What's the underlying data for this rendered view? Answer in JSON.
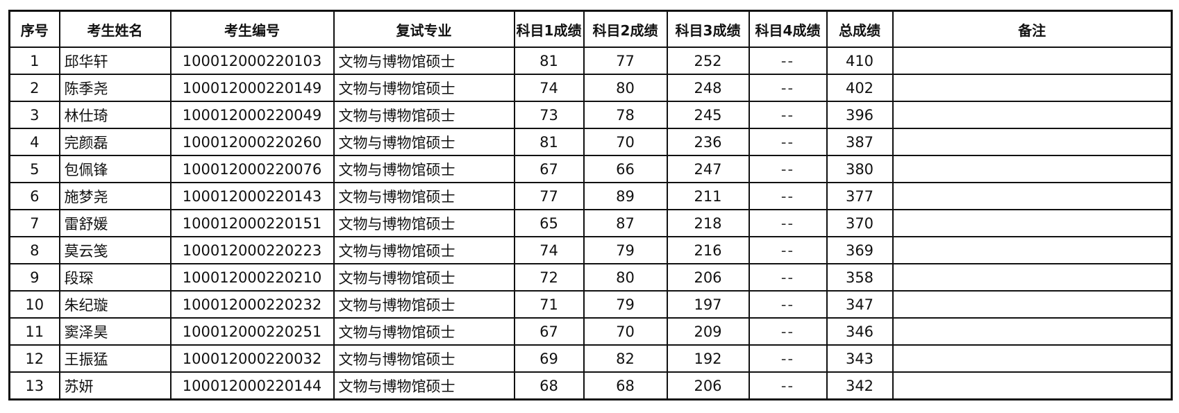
{
  "headers": [
    "序号",
    "考生姓名",
    "考生编号",
    "复试专业",
    "科目1成绩",
    "科目2成绩",
    "科目3成绩",
    "科目4成绩",
    "总成绩",
    "备注"
  ],
  "rows": [
    [
      "1",
      "邱华轩",
      "100012000220103",
      "文物与博物馆硕士",
      "81",
      "77",
      "252",
      "--",
      "410",
      ""
    ],
    [
      "2",
      "陈季尧",
      "100012000220149",
      "文物与博物馆硕士",
      "74",
      "80",
      "248",
      "--",
      "402",
      ""
    ],
    [
      "3",
      "林仕琦",
      "100012000220049",
      "文物与博物馆硕士",
      "73",
      "78",
      "245",
      "--",
      "396",
      ""
    ],
    [
      "4",
      "完颜磊",
      "100012000220260",
      "文物与博物馆硕士",
      "81",
      "70",
      "236",
      "--",
      "387",
      ""
    ],
    [
      "5",
      "包佩锋",
      "100012000220076",
      "文物与博物馆硕士",
      "67",
      "66",
      "247",
      "--",
      "380",
      ""
    ],
    [
      "6",
      "施梦尧",
      "100012000220143",
      "文物与博物馆硕士",
      "77",
      "89",
      "211",
      "--",
      "377",
      ""
    ],
    [
      "7",
      "雷舒媛",
      "100012000220151",
      "文物与博物馆硕士",
      "65",
      "87",
      "218",
      "--",
      "370",
      ""
    ],
    [
      "8",
      "莫云笺",
      "100012000220223",
      "文物与博物馆硕士",
      "74",
      "79",
      "216",
      "--",
      "369",
      ""
    ],
    [
      "9",
      "段琛",
      "100012000220210",
      "文物与博物馆硕士",
      "72",
      "80",
      "206",
      "--",
      "358",
      ""
    ],
    [
      "10",
      "朱纪璇",
      "100012000220232",
      "文物与博物馆硕士",
      "71",
      "79",
      "197",
      "--",
      "347",
      ""
    ],
    [
      "11",
      "窦泽昊",
      "100012000220251",
      "文物与博物馆硕士",
      "67",
      "70",
      "209",
      "--",
      "346",
      ""
    ],
    [
      "12",
      "王振猛",
      "100012000220032",
      "文物与博物馆硕士",
      "69",
      "82",
      "192",
      "--",
      "343",
      ""
    ],
    [
      "13",
      "苏妍",
      "100012000220144",
      "文物与博物馆硕士",
      "68",
      "68",
      "206",
      "--",
      "342",
      ""
    ]
  ]
}
